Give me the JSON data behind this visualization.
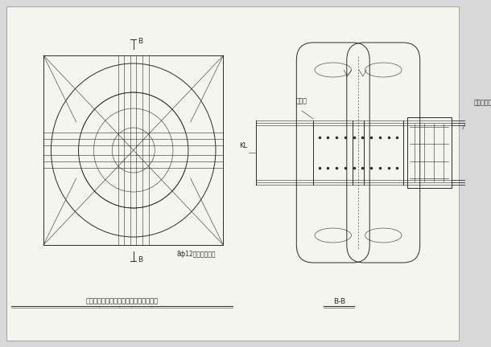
{
  "bg_color": "#d8d8d8",
  "paper_color": "#f5f5f0",
  "line_color": "#2a2a2a",
  "title_left": "钢管混凝土柱与钢筋混凝土梁节点示意图",
  "title_right": "B-B",
  "label_KL": "KL",
  "label_force": "剪力槽",
  "label_ring": "钢板土环架",
  "label_rebar": "8ф12放射钢筋布置",
  "label_B": "B"
}
